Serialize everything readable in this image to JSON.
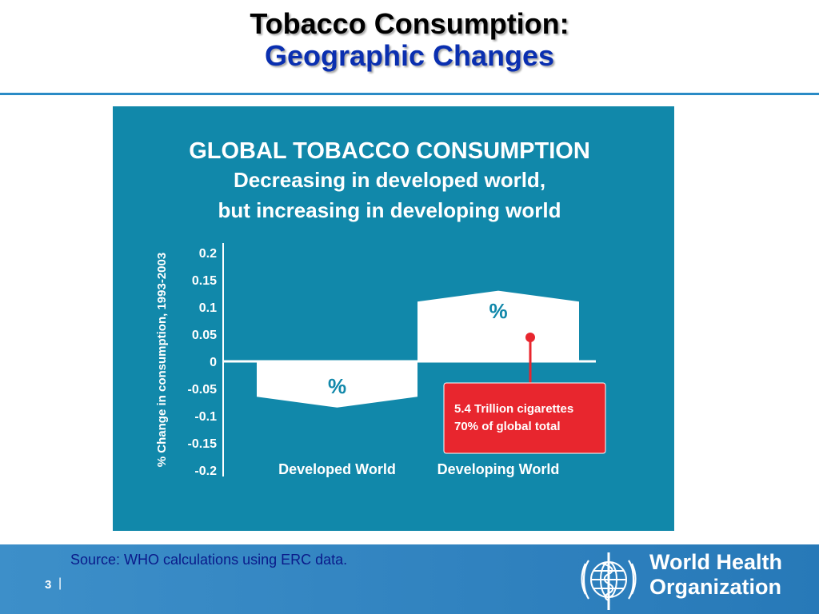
{
  "slide": {
    "title_line1": "Tobacco Consumption:",
    "title_line2": "Geographic Changes"
  },
  "footer": {
    "source": "Source: WHO calculations using ERC data.",
    "page_number": "3",
    "separator": "|",
    "org_name_line1": "World Health",
    "org_name_line2": "Organization",
    "emblem_icon": "who-emblem-icon"
  },
  "colors": {
    "panel_background": "#1188aa",
    "bar": "#ffffff",
    "callout": "#e8262e",
    "title_blue": "#0a2fb0",
    "footer_blue": "#2a84c2"
  },
  "chart_data": {
    "type": "bar",
    "title": "GLOBAL TOBACCO CONSUMPTION",
    "subtitle_lines": [
      "Decreasing in developed world,",
      "but increasing in developing world"
    ],
    "ylabel": "% Change in consumption, 1993-2003",
    "xlabel": "",
    "ylim": [
      -0.2,
      0.2
    ],
    "yticks": [
      "0.2",
      "0.15",
      "0.1",
      "0.05",
      "0",
      "-0.05",
      "-0.1",
      "-0.15",
      "-0.2"
    ],
    "ytick_values": [
      0.2,
      0.15,
      0.1,
      0.05,
      0,
      -0.05,
      -0.1,
      -0.15,
      -0.2
    ],
    "categories": [
      "Developed World",
      "Developing World"
    ],
    "bars": [
      {
        "label": "Developed World",
        "left_value": -0.065,
        "peak_value": -0.085,
        "right_value": -0.065,
        "bar_label": "%"
      },
      {
        "label": "Developing World",
        "left_value": 0.11,
        "peak_value": 0.13,
        "right_value": 0.11,
        "bar_label": "%"
      }
    ],
    "annotation": {
      "lines": [
        "5.4 Trillion cigarettes",
        "70% of global total"
      ],
      "target": "Developing World"
    },
    "grid": false,
    "legend": "none"
  }
}
